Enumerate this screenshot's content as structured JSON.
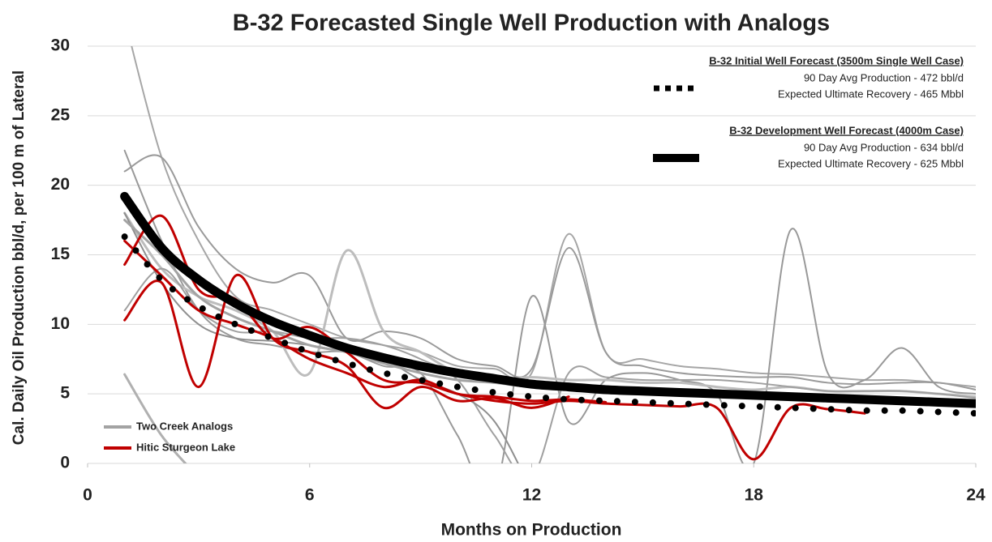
{
  "chart_data": {
    "type": "line",
    "title": "B-32 Forecasted Single Well Production with Analogs",
    "x_label": "Months on Production",
    "y_label": "Cal.  Daily Oil Production bbl/d, per 100 m of Lateral",
    "xlim": [
      0,
      24
    ],
    "xticks": [
      0,
      6,
      12,
      18,
      24
    ],
    "ylim": [
      0,
      30
    ],
    "yticks": [
      0,
      5,
      10,
      15,
      20,
      25,
      30
    ],
    "grid": true,
    "smooth": true,
    "x": [
      1,
      2,
      3,
      4,
      5,
      6,
      7,
      8,
      9,
      10,
      11,
      12,
      13,
      14,
      15,
      16,
      17,
      18,
      19,
      20,
      21,
      22,
      23,
      24
    ],
    "series": [
      {
        "color": "#b0b0b0",
        "width": 3,
        "values": [
          6.4,
          2,
          -1,
          null,
          null,
          null,
          null,
          null,
          null,
          null,
          null,
          null,
          null,
          null,
          null,
          null,
          null,
          null,
          null,
          null,
          null,
          null,
          null,
          null
        ]
      },
      {
        "color": "#a6a6a6",
        "width": 2,
        "values": [
          32,
          22,
          16,
          12,
          11,
          10,
          9,
          8.5,
          8,
          7,
          6.8,
          6.5,
          16.5,
          8,
          7.5,
          7,
          6.8,
          6.5,
          6.4,
          6.2,
          6,
          6,
          5.8,
          5.5
        ]
      },
      {
        "color": "#9a9a9a",
        "width": 2,
        "values": [
          21,
          22,
          17,
          14,
          13,
          13.5,
          9,
          9.5,
          9,
          7.5,
          7,
          6.8,
          15.5,
          8,
          7,
          6.5,
          6.3,
          6.2,
          6.2,
          5.8,
          5.7,
          5.8,
          5.8,
          5.3
        ]
      },
      {
        "color": "#999999",
        "width": 2,
        "values": [
          22.5,
          16,
          11,
          9,
          8.5,
          8,
          8,
          7,
          6.5,
          2,
          -2,
          12,
          3,
          6,
          6.5,
          6,
          5,
          0,
          16.8,
          6.5,
          6,
          8.3,
          5.5,
          5
        ]
      },
      {
        "color": "#bdbdbd",
        "width": 3,
        "values": [
          18,
          14,
          12,
          11,
          9.5,
          6.5,
          15.3,
          9.5,
          8,
          6.5,
          6,
          6.2,
          6,
          6,
          5.8,
          5.8,
          5.5,
          5.3,
          5.5,
          5.2,
          5.2,
          5.2,
          5,
          4.8
        ]
      },
      {
        "color": "#a0a0a0",
        "width": 2,
        "values": [
          11,
          14,
          11,
          9.5,
          9.5,
          9,
          9,
          8.5,
          7.5,
          6,
          2,
          -1,
          6.5,
          6.2,
          6,
          6,
          6,
          5.8,
          5.5,
          5.2,
          5.2,
          5.2,
          5,
          4.7
        ]
      },
      {
        "color": "#8f8f8f",
        "width": 2,
        "values": [
          18,
          13,
          10,
          9,
          8.8,
          8.5,
          8,
          7.5,
          6,
          5,
          3,
          -2,
          null,
          null,
          null,
          null,
          null,
          null,
          null,
          null,
          null,
          null,
          null,
          null
        ]
      },
      {
        "name": "Two Creek Analogs",
        "legend": "lower left",
        "color": "#a3a3a3",
        "width": 3,
        "values": [
          17.5,
          15,
          12,
          10.5,
          9.5,
          8.5,
          8,
          7.2,
          6.5,
          6,
          5.8,
          5.5,
          5.5,
          5.3,
          5.2,
          5.1,
          5,
          4.9,
          4.8,
          4.7,
          4.6,
          4.6,
          4.5,
          4.5
        ]
      },
      {
        "color": "#c00000",
        "width": 3,
        "values": [
          10.3,
          13,
          5.5,
          13.5,
          9,
          8,
          7,
          4,
          5.5,
          4.5,
          4.7,
          4,
          4.8,
          null,
          null,
          null,
          null,
          null,
          null,
          null,
          null,
          null,
          null,
          null
        ]
      },
      {
        "color": "#c00000",
        "width": 3,
        "values": [
          16,
          13.5,
          11,
          10,
          9,
          7.5,
          6.5,
          5.5,
          6,
          5,
          4.8,
          4.5,
          4.6,
          4.4,
          null,
          null,
          null,
          null,
          null,
          null,
          null,
          null,
          null,
          null
        ]
      },
      {
        "name": "Hitic Sturgeon Lake",
        "legend": "lower left",
        "color": "#c00000",
        "width": 3,
        "values": [
          14.3,
          17.8,
          12.5,
          11.8,
          9,
          9.8,
          8,
          6,
          5.8,
          5,
          4.5,
          4.3,
          4.5,
          4.3,
          4.2,
          4.1,
          4,
          0.3,
          4,
          3.9,
          3.6,
          null,
          null,
          null
        ]
      },
      {
        "name": "B-32 Initial Well Forecast (3500m Single Well Case)",
        "legend": "upper right",
        "style": "dotted",
        "color": "#000000",
        "width": 8,
        "details": [
          "90 Day Avg Production -  472 bbl/d",
          "Expected Ultimate Recovery -  465 Mbbl"
        ],
        "values": [
          16.3,
          13.2,
          11.3,
          10,
          9,
          8,
          7.2,
          6.5,
          6,
          5.5,
          5.1,
          4.8,
          4.6,
          4.5,
          4.4,
          4.3,
          4.2,
          4.1,
          4,
          3.9,
          3.8,
          3.8,
          3.7,
          3.6
        ]
      },
      {
        "name": "B-32 Development Well Forecast (4000m Case)",
        "legend": "upper right",
        "color": "#000000",
        "width": 11,
        "details": [
          "90 Day Avg Production -  634 bbl/d",
          "Expected Ultimate Recovery -  625 Mbbl"
        ],
        "values": [
          19.2,
          15.5,
          13.2,
          11.5,
          10.2,
          9.2,
          8.3,
          7.6,
          7,
          6.5,
          6.1,
          5.7,
          5.5,
          5.3,
          5.2,
          5.1,
          5,
          4.9,
          4.8,
          4.7,
          4.6,
          4.5,
          4.4,
          4.3
        ]
      }
    ]
  }
}
